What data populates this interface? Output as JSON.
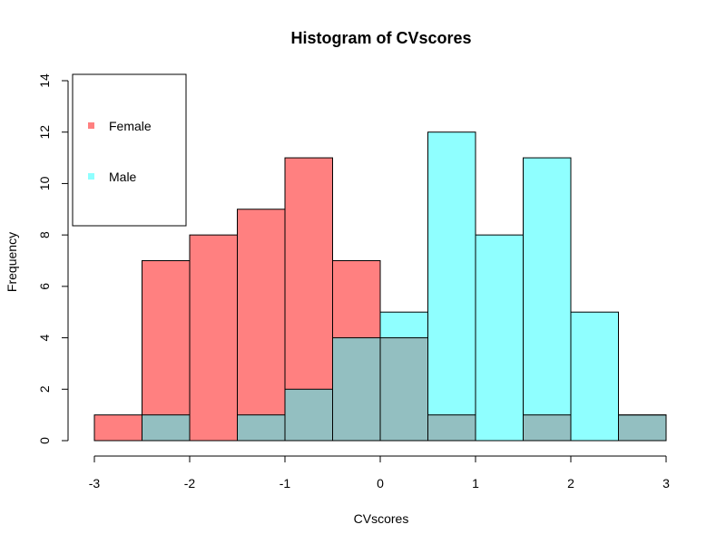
{
  "chart_data": {
    "type": "bar",
    "title": "Histogram of CVscores",
    "xlabel": "CVscores",
    "ylabel": "Frequency",
    "xlim": [
      -3,
      3
    ],
    "ylim": [
      0,
      14
    ],
    "x_ticks": [
      "-3",
      "-2",
      "-1",
      "0",
      "1",
      "2",
      "3"
    ],
    "y_ticks": [
      "0",
      "2",
      "4",
      "6",
      "8",
      "10",
      "12",
      "14"
    ],
    "bin_edges": [
      -3,
      -2.5,
      -2,
      -1.5,
      -1,
      -0.5,
      0,
      0.5,
      1,
      1.5,
      2,
      2.5,
      3
    ],
    "grid": false,
    "legend_position": "top-left",
    "overlap_color": "#93bfc1",
    "series": [
      {
        "name": "Female",
        "color": "#ff8080",
        "values": [
          1,
          7,
          8,
          9,
          11,
          7,
          4,
          1,
          0,
          1,
          0,
          1
        ]
      },
      {
        "name": "Male",
        "color": "#8fffff",
        "values": [
          0,
          1,
          0,
          1,
          2,
          4,
          5,
          12,
          8,
          11,
          5,
          1
        ]
      }
    ]
  }
}
